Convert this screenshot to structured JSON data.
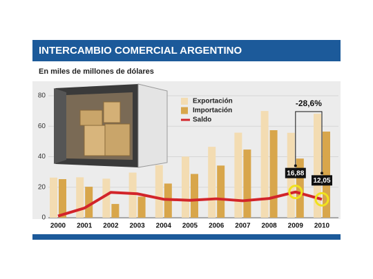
{
  "chart_data": {
    "type": "bar_line",
    "title": "INTERCAMBIO COMERCIAL ARGENTINO",
    "subtitle": "En miles de millones de dólares",
    "categories": [
      "2000",
      "2001",
      "2002",
      "2003",
      "2004",
      "2005",
      "2006",
      "2007",
      "2008",
      "2009",
      "2010"
    ],
    "series": [
      {
        "name": "Exportación",
        "kind": "bar",
        "color": "#f3dcb2",
        "values": [
          26.3,
          26.5,
          25.6,
          29.6,
          34.5,
          40.1,
          46.5,
          55.8,
          70.0,
          55.7,
          68.2
        ]
      },
      {
        "name": "Importación",
        "kind": "bar",
        "color": "#d8a64b",
        "values": [
          25.3,
          20.3,
          9.0,
          13.8,
          22.4,
          28.7,
          34.2,
          44.7,
          57.4,
          38.8,
          56.5
        ]
      },
      {
        "name": "Saldo",
        "kind": "line",
        "color": "#d2242a",
        "values": [
          1.1,
          6.3,
          16.6,
          15.7,
          12.1,
          11.4,
          12.4,
          11.1,
          12.6,
          16.88,
          12.05
        ],
        "value_labels": [
          null,
          null,
          null,
          null,
          null,
          null,
          null,
          null,
          null,
          "16,88",
          "12,05"
        ]
      }
    ],
    "annotation": "-28,6%",
    "ylim": [
      0,
      80
    ],
    "yticks": [
      0,
      20,
      40,
      60,
      80
    ],
    "grid": true,
    "legend": "top"
  }
}
